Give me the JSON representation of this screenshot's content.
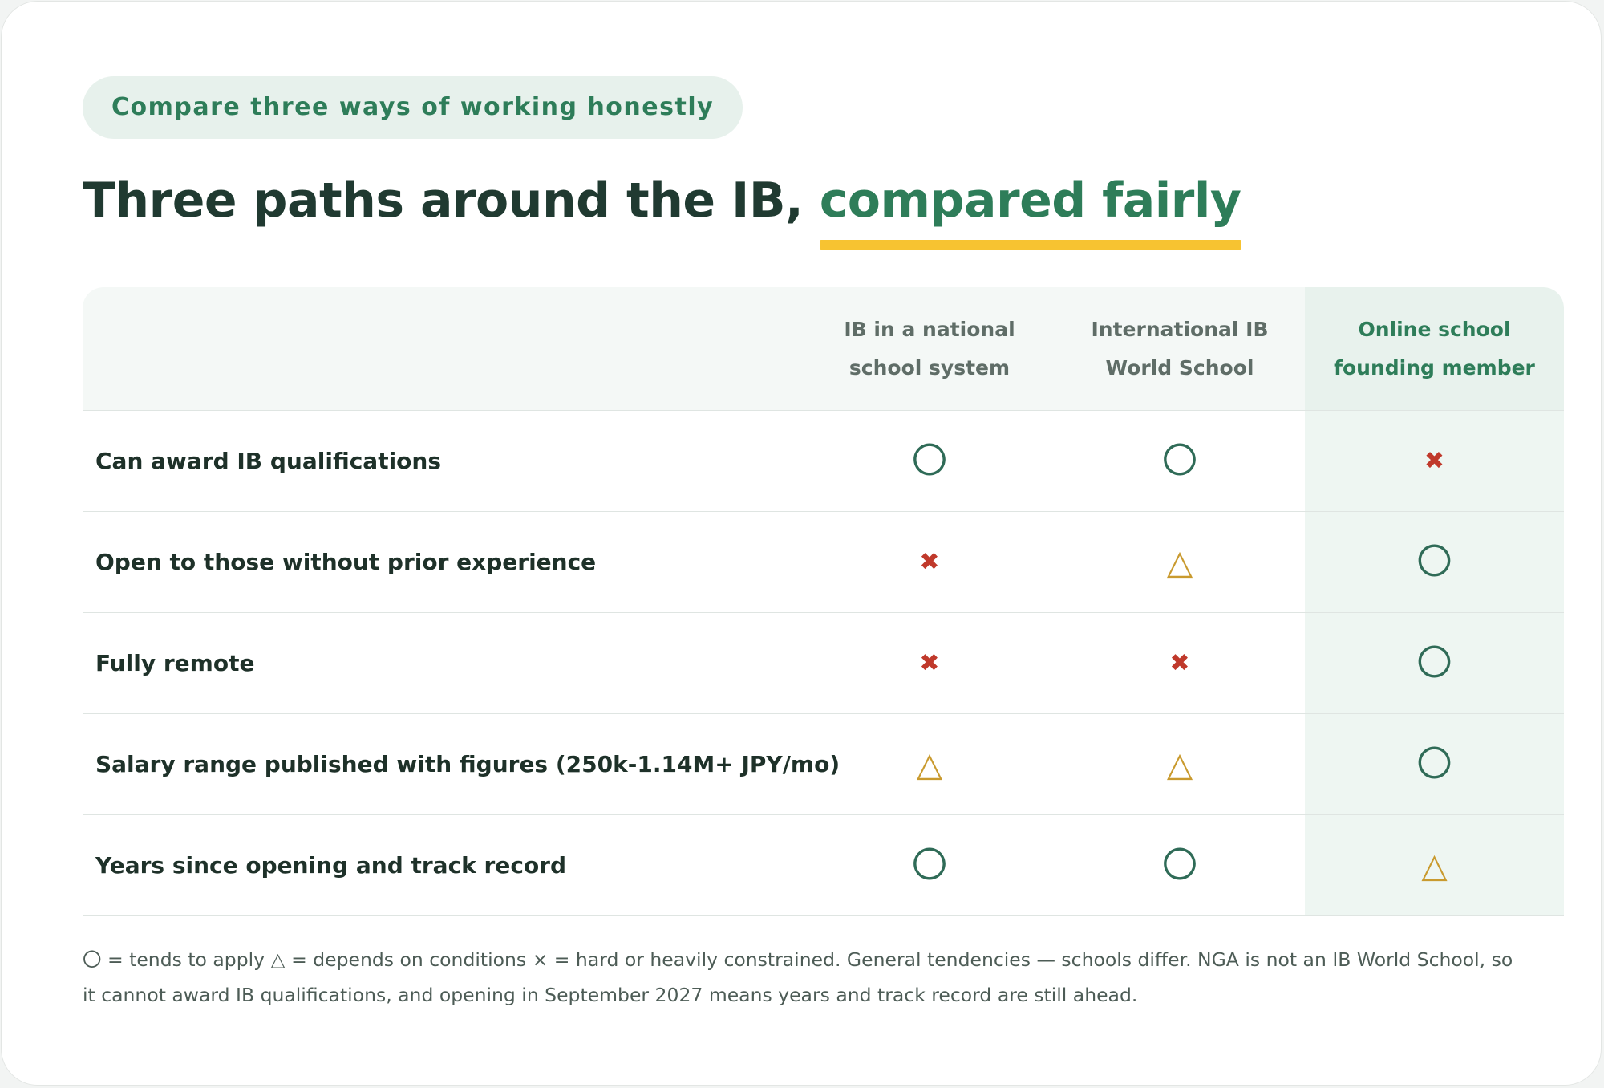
{
  "eyebrow": "Compare three ways of working honestly",
  "title": {
    "main": "Three paths around the IB,",
    "accent": "compared fairly"
  },
  "table": {
    "columns": [
      "IB in a national school system",
      "International IB World School",
      "Online school founding member"
    ],
    "rows": [
      {
        "label": "Can award IB qualifications",
        "marks": [
          "〇",
          "〇",
          "✖"
        ]
      },
      {
        "label": "Open to those without prior experience",
        "marks": [
          "✖",
          "△",
          "〇"
        ]
      },
      {
        "label": "Fully remote",
        "marks": [
          "✖",
          "✖",
          "〇"
        ]
      },
      {
        "label": "Salary range published with figures (250k-1.14M+ JPY/mo)",
        "marks": [
          "△",
          "△",
          "〇"
        ]
      },
      {
        "label": "Years since opening and track record",
        "marks": [
          "〇",
          "〇",
          "△"
        ]
      }
    ]
  },
  "footnote": "〇 = tends to apply △ = depends on conditions × = hard or heavily constrained. General tendencies — schools differ. NGA is not an IB World School, so it cannot award IB qualifications, and opening in September 2027 means years and track record are still ahead.",
  "colors": {
    "accent": "#2e7d59",
    "underline": "#f7c331",
    "circle": "#2f6b57",
    "triangle": "#c99a2e",
    "cross": "#c0392b",
    "highlight_column": "#eef6f2"
  }
}
